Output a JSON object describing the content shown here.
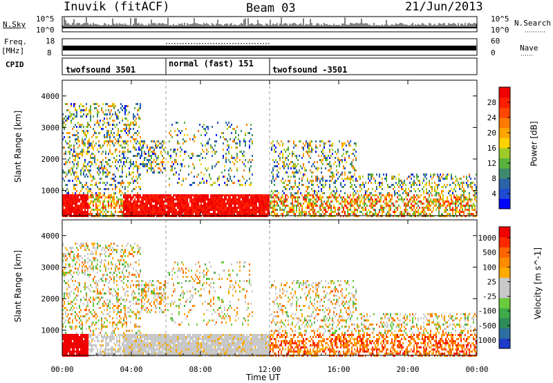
{
  "header": {
    "station": "Inuvik (fitACF)",
    "beam": "Beam 03",
    "date": "21/Jun/2013"
  },
  "top_panels": {
    "nsky_label": "N.Sky",
    "nsky_ticks": [
      "10^5",
      "10^0"
    ],
    "nsearch_label": "N.Search",
    "nsearch_ticks": [
      "10^5",
      "10^0"
    ],
    "freq_label": "Freq.",
    "freq_unit": "[MHz]",
    "freq_ticks": [
      "18",
      "8"
    ],
    "nave_label": "Nave",
    "nave_ticks": [
      "60",
      "0"
    ],
    "cpid_label": "CPID",
    "cpid_segments": [
      {
        "label": "twofsound 3501",
        "start_h": 0,
        "end_h": 6
      },
      {
        "label": "normal (fast) 151",
        "start_h": 6,
        "end_h": 12
      },
      {
        "label": "twofsound -3501",
        "start_h": 12,
        "end_h": 24
      }
    ]
  },
  "chart_data": [
    {
      "type": "heatmap",
      "title": "Power",
      "xlabel": "Time UT",
      "ylabel": "Slant Range [km]",
      "xlim": [
        0,
        24
      ],
      "ylim": [
        200,
        4500
      ],
      "x_ticks": [
        "00:00",
        "04:00",
        "08:00",
        "12:00",
        "16:00",
        "20:00",
        "00:00"
      ],
      "y_ticks": [
        "1000",
        "2000",
        "3000",
        "4000"
      ],
      "colorbar": {
        "label": "Power [dB]",
        "ticks": [
          "4",
          "8",
          "12",
          "16",
          "20",
          "24",
          "28"
        ],
        "colors": [
          "#0000ff",
          "#1e4bd2",
          "#2a64a6",
          "#3e8a6e",
          "#59b23c",
          "#9ecb28",
          "#ffd200",
          "#ffa500",
          "#ff7a00",
          "#ff4500",
          "#ff1e00",
          "#f00000"
        ]
      }
    },
    {
      "type": "heatmap",
      "title": "Velocity",
      "xlabel": "Time UT",
      "ylabel": "Slant Range [km]",
      "xlim": [
        0,
        24
      ],
      "ylim": [
        200,
        4500
      ],
      "x_ticks": [
        "00:00",
        "04:00",
        "08:00",
        "12:00",
        "16:00",
        "20:00",
        "00:00"
      ],
      "y_ticks": [
        "1000",
        "2000",
        "3000",
        "4000"
      ],
      "colorbar": {
        "label": "Velocity [m s^-1]",
        "ticks": [
          "1000",
          "500",
          "100",
          "25",
          "-25",
          "-100",
          "-500",
          "-1000"
        ],
        "colors": [
          "#1e3cc8",
          "#2c6ea0",
          "#2f8a5a",
          "#3faa4a",
          "#6acc3c",
          "#c8c8c8",
          "#c8c8c8",
          "#ffaa00",
          "#ff8c00",
          "#ff6400",
          "#ff2800",
          "#f00000"
        ]
      }
    }
  ]
}
